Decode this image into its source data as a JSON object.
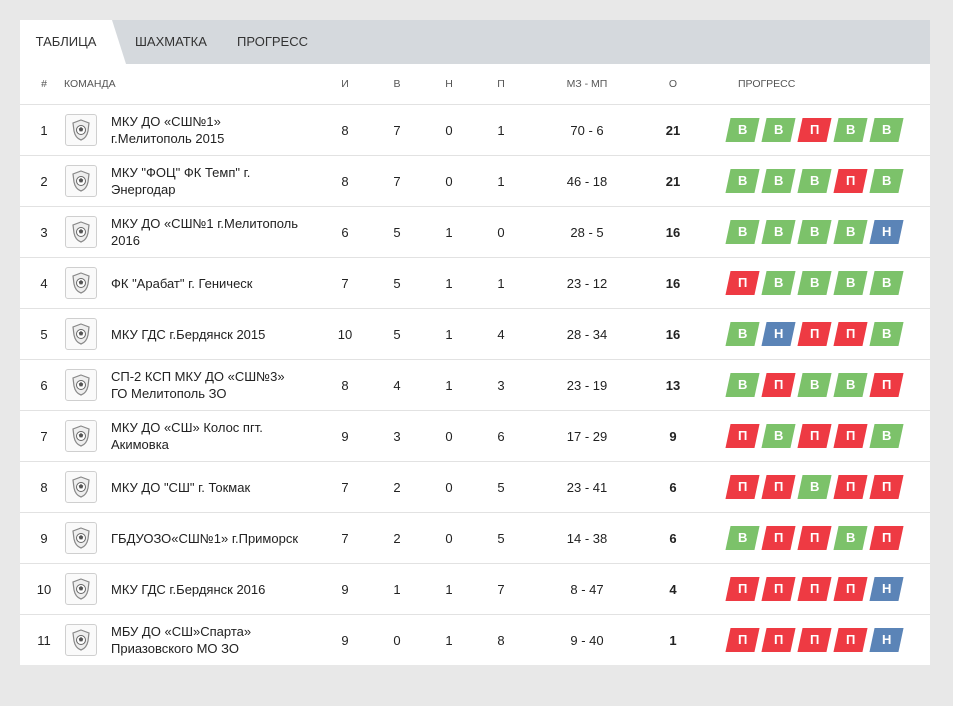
{
  "tabs": [
    "ТАБЛИЦА",
    "ШАХМАТКА",
    "ПРОГРЕСС"
  ],
  "headers": {
    "pos": "#",
    "team": "КОМАНДА",
    "games": "И",
    "wins": "В",
    "draws": "Н",
    "losses": "П",
    "goals": "МЗ - МП",
    "points": "О",
    "progress": "ПРОГРЕСС"
  },
  "colors": {
    "win": "#7cc26a",
    "loss": "#ee3a43",
    "draw": "#5b84b7"
  },
  "rows": [
    {
      "pos": "1",
      "team": "МКУ ДО «СШ№1» г.Мелитополь 2015",
      "i": "8",
      "v": "7",
      "n": "0",
      "p": "1",
      "goals": "70 - 6",
      "o": "21",
      "progress": [
        "В",
        "В",
        "П",
        "В",
        "В"
      ]
    },
    {
      "pos": "2",
      "team": "МКУ \"ФОЦ\" ФК Темп\" г. Энергодар",
      "i": "8",
      "v": "7",
      "n": "0",
      "p": "1",
      "goals": "46 - 18",
      "o": "21",
      "progress": [
        "В",
        "В",
        "В",
        "П",
        "В"
      ]
    },
    {
      "pos": "3",
      "team": "МКУ ДО «СШ№1 г.Мелитополь 2016",
      "i": "6",
      "v": "5",
      "n": "1",
      "p": "0",
      "goals": "28 - 5",
      "o": "16",
      "progress": [
        "В",
        "В",
        "В",
        "В",
        "Н"
      ]
    },
    {
      "pos": "4",
      "team": "ФК \"Арабат\" г. Геническ",
      "i": "7",
      "v": "5",
      "n": "1",
      "p": "1",
      "goals": "23 - 12",
      "o": "16",
      "progress": [
        "П",
        "В",
        "В",
        "В",
        "В"
      ]
    },
    {
      "pos": "5",
      "team": "МКУ ГДС г.Бердянск 2015",
      "i": "10",
      "v": "5",
      "n": "1",
      "p": "4",
      "goals": "28 - 34",
      "o": "16",
      "progress": [
        "В",
        "Н",
        "П",
        "П",
        "В"
      ]
    },
    {
      "pos": "6",
      "team": "СП-2 КСП МКУ ДО «СШ№3» ГО Мелитополь ЗО",
      "i": "8",
      "v": "4",
      "n": "1",
      "p": "3",
      "goals": "23 - 19",
      "o": "13",
      "progress": [
        "В",
        "П",
        "В",
        "В",
        "П"
      ]
    },
    {
      "pos": "7",
      "team": "МКУ ДО «СШ» Колос пгт. Акимовка",
      "i": "9",
      "v": "3",
      "n": "0",
      "p": "6",
      "goals": "17 - 29",
      "o": "9",
      "progress": [
        "П",
        "В",
        "П",
        "П",
        "В"
      ]
    },
    {
      "pos": "8",
      "team": "МКУ ДО \"СШ\" г. Токмак",
      "i": "7",
      "v": "2",
      "n": "0",
      "p": "5",
      "goals": "23 - 41",
      "o": "6",
      "progress": [
        "П",
        "П",
        "В",
        "П",
        "П"
      ]
    },
    {
      "pos": "9",
      "team": "ГБДУОЗО«СШ№1» г.Приморск",
      "i": "7",
      "v": "2",
      "n": "0",
      "p": "5",
      "goals": "14 - 38",
      "o": "6",
      "progress": [
        "В",
        "П",
        "П",
        "В",
        "П"
      ]
    },
    {
      "pos": "10",
      "team": "МКУ ГДС г.Бердянск 2016",
      "i": "9",
      "v": "1",
      "n": "1",
      "p": "7",
      "goals": "8 - 47",
      "o": "4",
      "progress": [
        "П",
        "П",
        "П",
        "П",
        "Н"
      ]
    },
    {
      "pos": "11",
      "team": "МБУ ДО «СШ»Спарта» Приазовского МО ЗО",
      "i": "9",
      "v": "0",
      "n": "1",
      "p": "8",
      "goals": "9 - 40",
      "o": "1",
      "progress": [
        "П",
        "П",
        "П",
        "П",
        "Н"
      ]
    }
  ]
}
